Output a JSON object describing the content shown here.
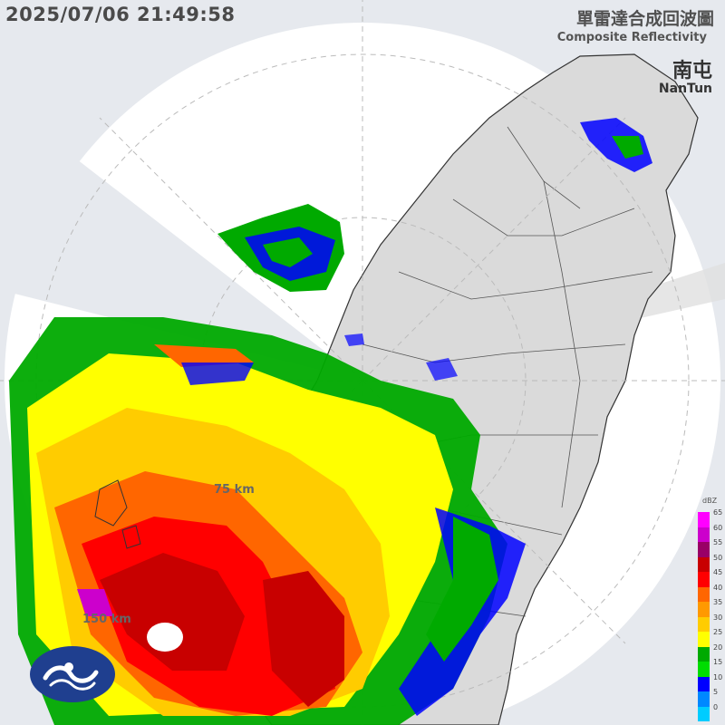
{
  "header": {
    "timestamp": "2025/07/06 21:49:58",
    "title_zh": "單雷達合成回波圖",
    "title_en": "Composite Reflectivity"
  },
  "station": {
    "name_zh": "南屯",
    "name_en": "NanTun"
  },
  "range_rings": {
    "labels": [
      "75 km",
      "150 km"
    ],
    "values_km": [
      75,
      150
    ]
  },
  "legend": {
    "unit": "dBZ",
    "ticks": [
      "65",
      "60",
      "55",
      "50",
      "45",
      "40",
      "35",
      "30",
      "25",
      "20",
      "15",
      "10",
      "5",
      "0"
    ],
    "colors": [
      "#ff00ff",
      "#cc00cc",
      "#990066",
      "#c80000",
      "#ff0000",
      "#ff6600",
      "#ff9900",
      "#ffcc00",
      "#ffff00",
      "#00aa00",
      "#00dd00",
      "#0000ff",
      "#0088ff",
      "#00ccff"
    ]
  },
  "colors": {
    "land": "#dadada",
    "sea": "#e6e9ee",
    "radar_coverage": "#ffffff",
    "boundary": "#333333"
  },
  "logo": {
    "icon": "cwa-logo-icon"
  }
}
